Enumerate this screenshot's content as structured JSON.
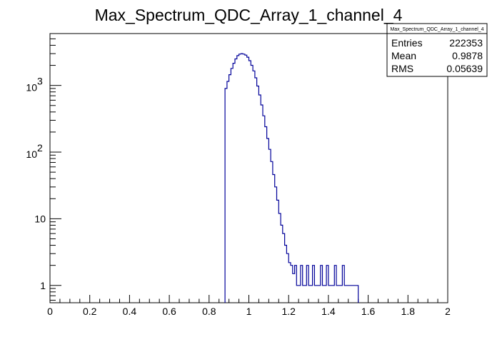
{
  "chart_data": {
    "type": "histogram",
    "title": "Max_Spectrum_QDC_Array_1_channel_4",
    "xlabel": "",
    "ylabel": "",
    "xlim": [
      0,
      2
    ],
    "ylim": [
      0.55,
      6000
    ],
    "y_scale": "log",
    "grid": false,
    "line_color": "#000099",
    "x_ticks": [
      {
        "value": 0,
        "label": "0"
      },
      {
        "value": 0.2,
        "label": "0.2"
      },
      {
        "value": 0.4,
        "label": "0.4"
      },
      {
        "value": 0.6,
        "label": "0.6"
      },
      {
        "value": 0.8,
        "label": "0.8"
      },
      {
        "value": 1,
        "label": "1"
      },
      {
        "value": 1.2,
        "label": "1.2"
      },
      {
        "value": 1.4,
        "label": "1.4"
      },
      {
        "value": 1.6,
        "label": "1.6"
      },
      {
        "value": 1.8,
        "label": "1.8"
      },
      {
        "value": 2,
        "label": "2"
      }
    ],
    "y_ticks": [
      {
        "value": 1,
        "base": "",
        "exp": "",
        "label": "1"
      },
      {
        "value": 10,
        "base": "",
        "exp": "",
        "label": "10"
      },
      {
        "value": 100,
        "base": "10",
        "exp": "2",
        "label": ""
      },
      {
        "value": 1000,
        "base": "10",
        "exp": "3",
        "label": ""
      }
    ],
    "series": [
      {
        "x": [
          0.88,
          0.89,
          0.9,
          0.91,
          0.92,
          0.93,
          0.94,
          0.95,
          0.96,
          0.97,
          0.98,
          0.99,
          1.0,
          1.01,
          1.02,
          1.03,
          1.04,
          1.05,
          1.06,
          1.07,
          1.08,
          1.09,
          1.1,
          1.11,
          1.12,
          1.13,
          1.14,
          1.15,
          1.16,
          1.17,
          1.18,
          1.19,
          1.2,
          1.21,
          1.22,
          1.23,
          1.24,
          1.25,
          1.26,
          1.27,
          1.28,
          1.29,
          1.3,
          1.31,
          1.32,
          1.33,
          1.34,
          1.35,
          1.36,
          1.37,
          1.38,
          1.39,
          1.4,
          1.41,
          1.42,
          1.43,
          1.44,
          1.45,
          1.46,
          1.47,
          1.48,
          1.49,
          1.5,
          1.51,
          1.52,
          1.53,
          1.54
        ],
        "y": [
          900,
          1150,
          1450,
          1800,
          2150,
          2500,
          2800,
          2950,
          3000,
          2950,
          2850,
          2650,
          2350,
          2000,
          1650,
          1300,
          980,
          720,
          510,
          350,
          240,
          160,
          110,
          72,
          46,
          30,
          19,
          12,
          8,
          6,
          4,
          3,
          2.2,
          2,
          1.5,
          2,
          1,
          1,
          2,
          1,
          1,
          2,
          1,
          1,
          2,
          1,
          1,
          1,
          2,
          1,
          1,
          2,
          1,
          1,
          1,
          2,
          1,
          1,
          1,
          2,
          1,
          1,
          1,
          1,
          1,
          1,
          1
        ]
      }
    ]
  },
  "stats_box": {
    "title": "Max_Spectrum_QDC_Array_1_channel_4",
    "rows": [
      {
        "label": "Entries",
        "value": "222353"
      },
      {
        "label": "Mean",
        "value": "0.9878"
      },
      {
        "label": "RMS",
        "value": "0.05639"
      }
    ]
  }
}
